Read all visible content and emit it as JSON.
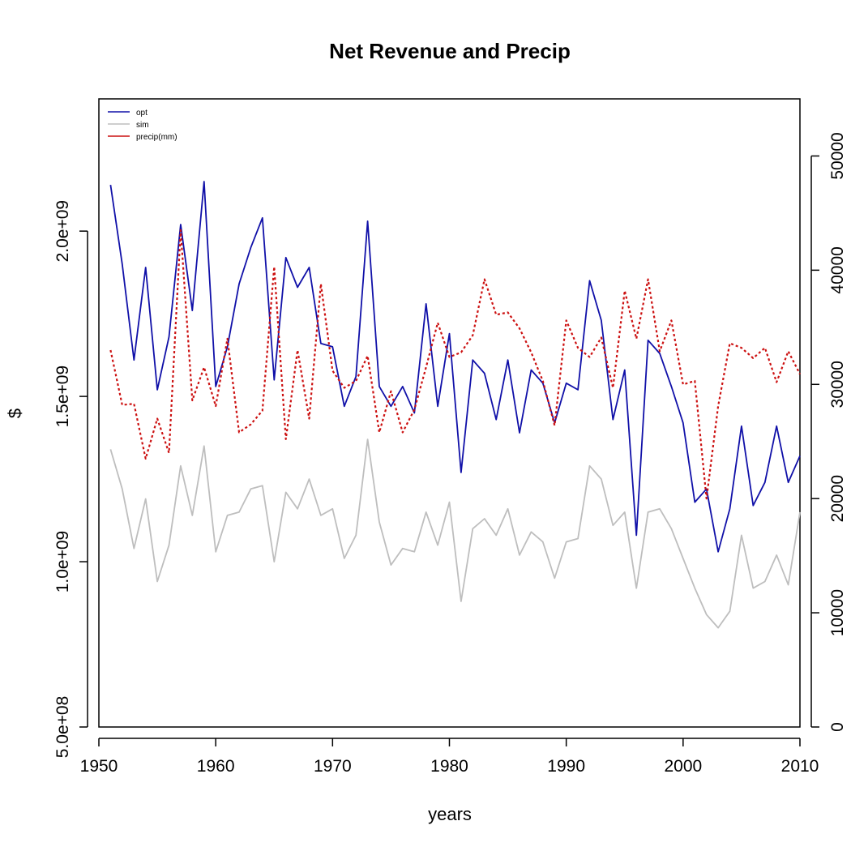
{
  "chart_data": {
    "type": "line",
    "title": "Net Revenue and Precip",
    "xlabel": "years",
    "ylabel": "$",
    "xlim": [
      1950,
      2010
    ],
    "ylim": [
      500000000,
      2400000000
    ],
    "y2lim": [
      0,
      55000
    ],
    "x_ticks": [
      1950,
      1960,
      1970,
      1980,
      1990,
      2000,
      2010
    ],
    "x_tick_labels": [
      "1950",
      "1960",
      "1970",
      "1980",
      "1990",
      "2000",
      "2010"
    ],
    "y_ticks": [
      500000000,
      1000000000,
      1500000000,
      2000000000
    ],
    "y_tick_labels": [
      "5.0e+08",
      "1.0e+09",
      "1.5e+09",
      "2.0e+09"
    ],
    "y2_ticks": [
      0,
      10000,
      20000,
      30000,
      40000,
      50000
    ],
    "y2_tick_labels": [
      "0",
      "10000",
      "20000",
      "30000",
      "40000",
      "50000"
    ],
    "grid": false,
    "legend_position": "top-left",
    "x": [
      1951,
      1952,
      1953,
      1954,
      1955,
      1956,
      1957,
      1958,
      1959,
      1960,
      1961,
      1962,
      1963,
      1964,
      1965,
      1966,
      1967,
      1968,
      1969,
      1970,
      1971,
      1972,
      1973,
      1974,
      1975,
      1976,
      1977,
      1978,
      1979,
      1980,
      1981,
      1982,
      1983,
      1984,
      1985,
      1986,
      1987,
      1988,
      1989,
      1990,
      1991,
      1992,
      1993,
      1994,
      1995,
      1996,
      1997,
      1998,
      1999,
      2000,
      2001,
      2002,
      2003,
      2004,
      2005,
      2006,
      2007,
      2008,
      2009,
      2010
    ],
    "series": [
      {
        "name": "opt",
        "axis": "left",
        "color": "#1010a8",
        "style": "solid",
        "values": [
          2140000000,
          1900000000,
          1610000000,
          1890000000,
          1520000000,
          1680000000,
          2020000000,
          1760000000,
          2150000000,
          1530000000,
          1650000000,
          1840000000,
          1950000000,
          2040000000,
          1550000000,
          1920000000,
          1830000000,
          1890000000,
          1660000000,
          1650000000,
          1470000000,
          1560000000,
          2030000000,
          1530000000,
          1470000000,
          1530000000,
          1450000000,
          1780000000,
          1470000000,
          1690000000,
          1270000000,
          1610000000,
          1570000000,
          1430000000,
          1610000000,
          1390000000,
          1580000000,
          1540000000,
          1420000000,
          1540000000,
          1520000000,
          1850000000,
          1730000000,
          1430000000,
          1580000000,
          1080000000,
          1670000000,
          1630000000,
          1530000000,
          1420000000,
          1180000000,
          1220000000,
          1030000000,
          1160000000,
          1410000000,
          1170000000,
          1240000000,
          1410000000,
          1240000000,
          1320000000
        ]
      },
      {
        "name": "sim",
        "axis": "left",
        "color": "#bebebe",
        "style": "solid",
        "values": [
          1340000000,
          1220000000,
          1040000000,
          1190000000,
          940000000,
          1050000000,
          1290000000,
          1140000000,
          1350000000,
          1030000000,
          1140000000,
          1150000000,
          1220000000,
          1230000000,
          1000000000,
          1210000000,
          1160000000,
          1250000000,
          1140000000,
          1160000000,
          1010000000,
          1080000000,
          1370000000,
          1120000000,
          990000000,
          1040000000,
          1030000000,
          1150000000,
          1050000000,
          1180000000,
          880000000,
          1100000000,
          1130000000,
          1080000000,
          1160000000,
          1020000000,
          1090000000,
          1060000000,
          950000000,
          1060000000,
          1070000000,
          1290000000,
          1250000000,
          1110000000,
          1150000000,
          920000000,
          1150000000,
          1160000000,
          1100000000,
          1010000000,
          920000000,
          840000000,
          800000000,
          850000000,
          1080000000,
          920000000,
          940000000,
          1020000000,
          930000000,
          1150000000
        ]
      },
      {
        "name": "precip(mm)",
        "axis": "right",
        "color": "#cc1111",
        "style": "dotted",
        "values": [
          33000,
          28200,
          28300,
          23500,
          27000,
          24000,
          43500,
          28600,
          31500,
          28100,
          34000,
          25800,
          26500,
          27700,
          40300,
          25200,
          33000,
          27000,
          38800,
          31200,
          29700,
          30300,
          32500,
          25800,
          29400,
          25800,
          27800,
          31500,
          35400,
          32400,
          32800,
          34300,
          39200,
          36100,
          36300,
          34900,
          32800,
          30300,
          26400,
          35600,
          33200,
          32400,
          34100,
          29700,
          38200,
          34000,
          39200,
          32900,
          35600,
          30000,
          30300,
          20000,
          28100,
          33600,
          33200,
          32300,
          33200,
          30200,
          32900,
          30900
        ]
      }
    ]
  }
}
